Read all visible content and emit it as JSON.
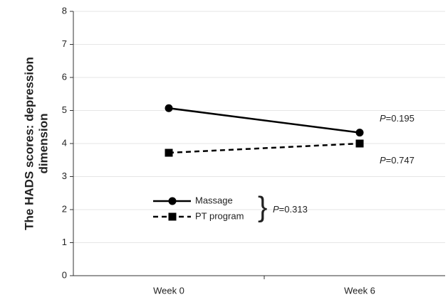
{
  "chart_data": {
    "type": "line",
    "ylabel": [
      "The HADS scores: depression",
      "dimension"
    ],
    "categories": [
      "Week 0",
      "Week 6"
    ],
    "series": [
      {
        "name": "Massage",
        "color": "#000000",
        "dash": "solid",
        "marker": "circle",
        "values": [
          5.07,
          4.33
        ]
      },
      {
        "name": "PT program",
        "color": "#000000",
        "dash": "dashed",
        "marker": "square",
        "values": [
          3.72,
          4.0
        ]
      }
    ],
    "ylim": [
      0,
      8
    ],
    "yticks": [
      0,
      1,
      2,
      3,
      4,
      5,
      6,
      7,
      8
    ],
    "grid": true,
    "legend": "lower left",
    "annotations": [
      "P=0.195",
      "P=0.747",
      "P=0.313"
    ]
  }
}
